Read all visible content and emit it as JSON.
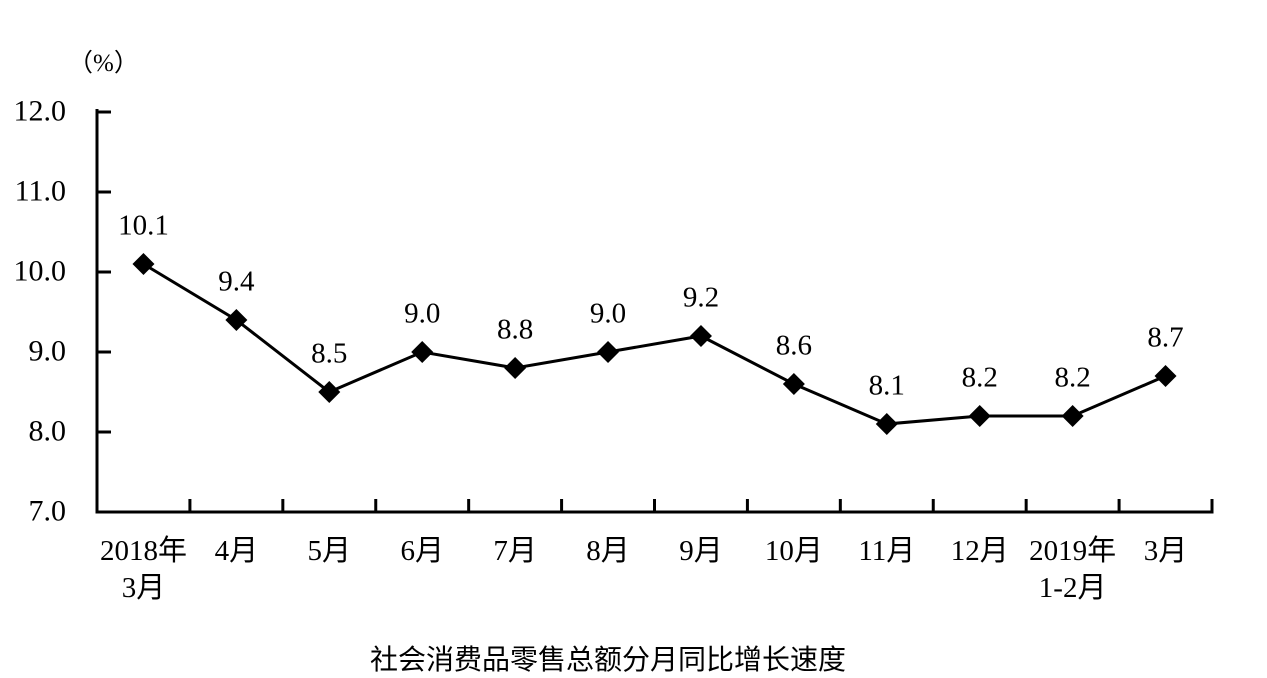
{
  "chart_data": {
    "type": "line",
    "title": "社会消费品零售总额分月同比增长速度",
    "unit_label": "（%）",
    "categories": [
      "2018年3月",
      "4月",
      "5月",
      "6月",
      "7月",
      "8月",
      "9月",
      "10月",
      "11月",
      "12月",
      "2019年1-2月",
      "3月"
    ],
    "x_tick_lines": [
      [
        "2018年",
        "3月"
      ],
      [
        "4月"
      ],
      [
        "5月"
      ],
      [
        "6月"
      ],
      [
        "7月"
      ],
      [
        "8月"
      ],
      [
        "9月"
      ],
      [
        "10月"
      ],
      [
        "11月"
      ],
      [
        "12月"
      ],
      [
        "2019年",
        "1-2月"
      ],
      [
        "3月"
      ]
    ],
    "values": [
      10.1,
      9.4,
      8.5,
      9.0,
      8.8,
      9.0,
      9.2,
      8.6,
      8.1,
      8.2,
      8.2,
      8.7
    ],
    "point_labels": [
      "10.1",
      "9.4",
      "8.5",
      "9.0",
      "8.8",
      "9.0",
      "9.2",
      "8.6",
      "8.1",
      "8.2",
      "8.2",
      "8.7"
    ],
    "y_axis": {
      "min": 7.0,
      "max": 12.0,
      "ticks": [
        7.0,
        8.0,
        9.0,
        10.0,
        11.0,
        12.0
      ],
      "tick_labels": [
        "7.0",
        "8.0",
        "9.0",
        "10.0",
        "11.0",
        "12.0"
      ]
    },
    "marker": "diamond",
    "grid": "off",
    "legend": "none",
    "colors": {
      "line": "#000000",
      "marker": "#000000",
      "axis": "#000000",
      "text": "#000000",
      "background": "#ffffff"
    }
  }
}
